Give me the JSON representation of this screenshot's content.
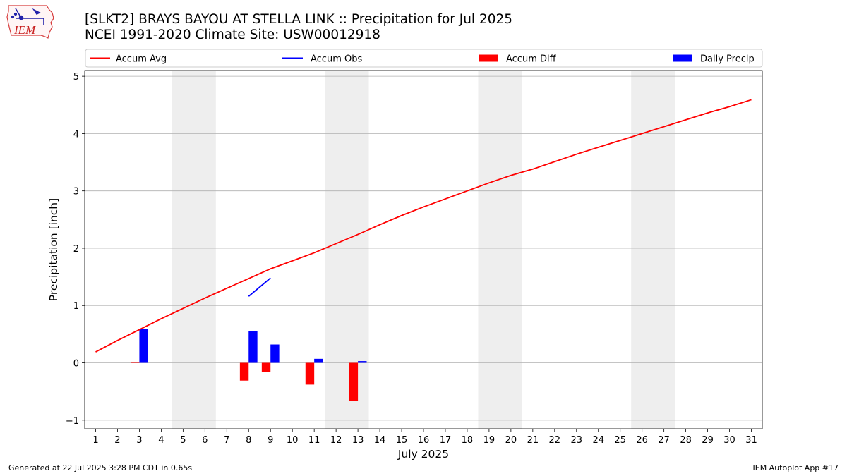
{
  "header": {
    "title_line1": "[SLKT2] BRAYS BAYOU AT STELLA LINK :: Precipitation for Jul 2025",
    "title_line2": "NCEI 1991-2020 Climate Site: USW00012918",
    "logo_text": "IEM"
  },
  "footer": {
    "left": "Generated at 22 Jul 2025 3:28 PM CDT in 0.65s",
    "right": "IEM Autoplot App #17"
  },
  "chart_data": {
    "type": "bar",
    "xlabel": "July 2025",
    "ylabel": "Precipitation [inch]",
    "xlim": [
      0.5,
      31.5
    ],
    "ylim": [
      -1.15,
      5.1
    ],
    "yticks": [
      -1,
      0,
      1,
      2,
      3,
      4,
      5
    ],
    "xticks": [
      1,
      2,
      3,
      4,
      5,
      6,
      7,
      8,
      9,
      10,
      11,
      12,
      13,
      14,
      15,
      16,
      17,
      18,
      19,
      20,
      21,
      22,
      23,
      24,
      25,
      26,
      27,
      28,
      29,
      30,
      31
    ],
    "grid": "y",
    "legend_position": "top",
    "weekend_bands": [
      [
        4.5,
        6.5
      ],
      [
        11.5,
        13.5
      ],
      [
        18.5,
        20.5
      ],
      [
        25.5,
        27.5
      ]
    ],
    "series": [
      {
        "name": "Accum Avg",
        "kind": "line",
        "color": "#ff0000",
        "x": [
          1,
          2,
          3,
          4,
          5,
          6,
          7,
          8,
          9,
          10,
          11,
          12,
          13,
          14,
          15,
          16,
          17,
          18,
          19,
          20,
          21,
          22,
          23,
          24,
          25,
          26,
          27,
          28,
          29,
          30,
          31
        ],
        "values": [
          0.19,
          0.39,
          0.58,
          0.77,
          0.95,
          1.13,
          1.3,
          1.47,
          1.64,
          1.78,
          1.92,
          2.08,
          2.24,
          2.41,
          2.57,
          2.72,
          2.86,
          3.0,
          3.14,
          3.27,
          3.38,
          3.51,
          3.64,
          3.76,
          3.88,
          4.0,
          4.12,
          4.24,
          4.36,
          4.47,
          4.59
        ]
      },
      {
        "name": "Accum Obs",
        "kind": "line",
        "color": "#0000ff",
        "x": [
          8,
          9
        ],
        "values": [
          1.16,
          1.48
        ]
      },
      {
        "name": "Accum Diff",
        "kind": "bar",
        "color": "#ff0000",
        "x": [
          3,
          8,
          9,
          11,
          13
        ],
        "values": [
          0.01,
          -0.31,
          -0.16,
          -0.38,
          -0.66
        ]
      },
      {
        "name": "Daily Precip",
        "kind": "bar",
        "color": "#0000ff",
        "x": [
          3,
          8,
          9,
          11,
          13
        ],
        "values": [
          0.59,
          0.55,
          0.32,
          0.07,
          0.03
        ]
      }
    ]
  }
}
